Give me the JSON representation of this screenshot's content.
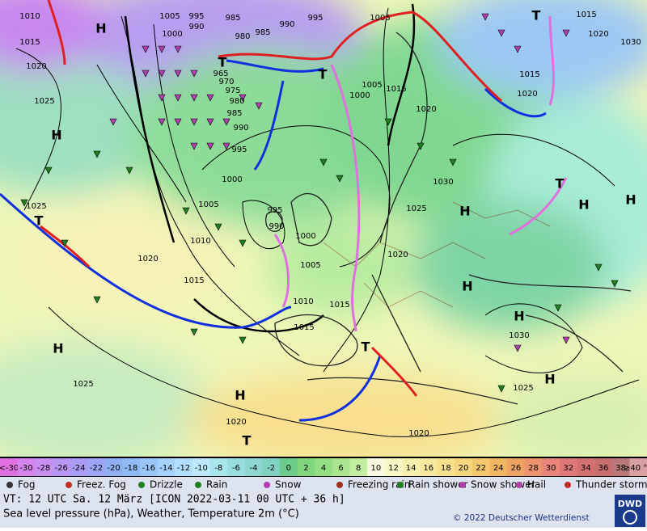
{
  "map": {
    "pressure_labels": [
      1010,
      1015,
      1020,
      1025,
      1005,
      995,
      985,
      1000,
      990,
      980,
      985,
      990,
      995,
      1005,
      1015,
      1020,
      1030,
      1015,
      1020,
      1025,
      1020,
      1015,
      1010,
      1005,
      995,
      990,
      1000,
      1005,
      1010,
      1015,
      1015,
      1020,
      1025,
      1030,
      1020,
      1015,
      1005,
      1000,
      1030,
      1025,
      1020,
      1020,
      1025,
      1000,
      995,
      990,
      985,
      980,
      975,
      970,
      965
    ],
    "markers": [
      "H",
      "H",
      "H",
      "H",
      "H",
      "H",
      "H",
      "H",
      "H",
      "H",
      "T",
      "T",
      "T",
      "T",
      "T",
      "T",
      "T"
    ]
  },
  "scale": {
    "labels": [
      "<-30",
      -30,
      -28,
      -26,
      -24,
      -22,
      -20,
      -18,
      -16,
      -14,
      -12,
      -10,
      -8,
      -6,
      -4,
      -2,
      0,
      2,
      4,
      6,
      8,
      10,
      12,
      14,
      16,
      18,
      20,
      22,
      24,
      26,
      28,
      30,
      32,
      34,
      36,
      38,
      "≥40 °C"
    ],
    "colors": [
      "#e070e0",
      "#d484ec",
      "#c890f0",
      "#b896f2",
      "#a89cf4",
      "#9ca6f4",
      "#8eb0f2",
      "#90baf4",
      "#98c6f8",
      "#a4d2fa",
      "#b0defc",
      "#bceafc",
      "#a8e6ee",
      "#98dede",
      "#8cd8d0",
      "#80d2c0",
      "#6ccc8c",
      "#80d67c",
      "#94de84",
      "#aae690",
      "#c2eea0",
      "#f8f8e0",
      "#f8f8c4",
      "#f6f0ac",
      "#f6e89c",
      "#f6e08c",
      "#f6d67c",
      "#f4c86c",
      "#f2b660",
      "#eea460",
      "#ec926c",
      "#e8847c",
      "#e07878",
      "#d47070",
      "#c86e6e",
      "#b87878",
      "#d8a0a0"
    ]
  },
  "legend": [
    "Fog",
    "Freez. Fog",
    "Drizzle",
    "Rain",
    "Snow",
    "Freezing rain",
    "Rain shower",
    "Snow shower",
    "Hail",
    "Thunder storm"
  ],
  "info": {
    "valid_time": "VT: 12 UTC Sa.  12 März [ICON 2022-03-11  00 UTC + 36 h]",
    "description": "Sea level pressure (hPa), Weather, Temperature 2m (°C)",
    "copyright": "© 2022 Deutscher Wetterdienst",
    "logo": "DWD"
  }
}
